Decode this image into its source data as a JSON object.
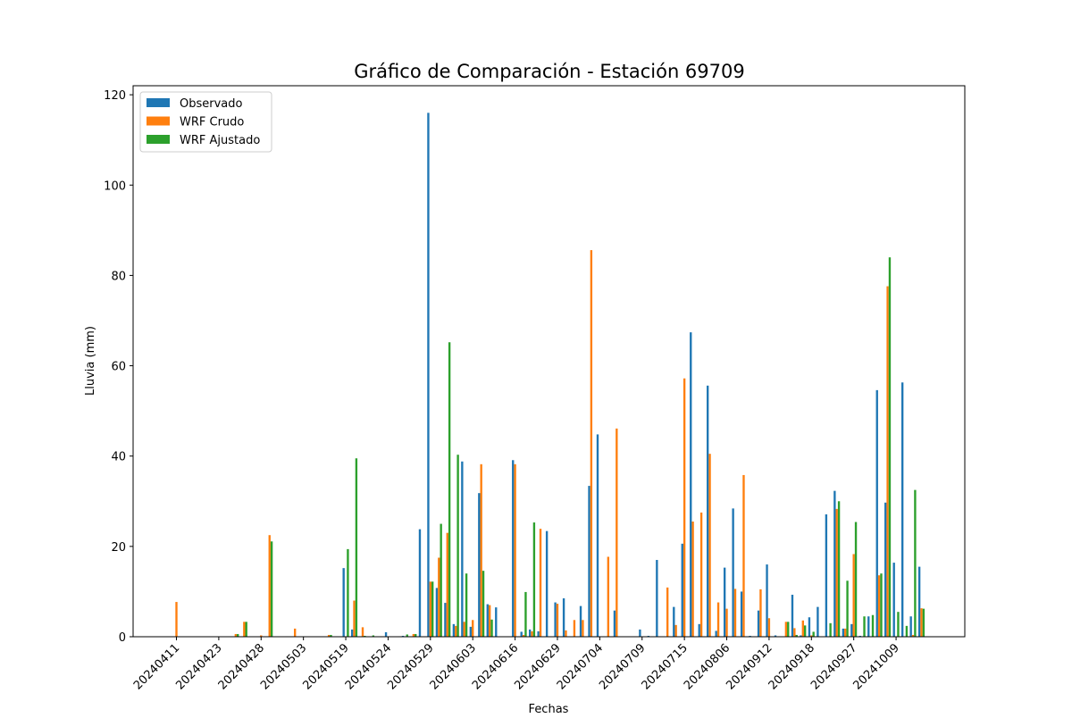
{
  "chart_data": {
    "type": "bar",
    "title": "Gráfico de Comparación - Estación 69709",
    "xlabel": "Fechas",
    "ylabel": "Lluvia (mm)",
    "ylim": [
      0,
      122
    ],
    "yticks": [
      0,
      20,
      40,
      60,
      80,
      100,
      120
    ],
    "grid": false,
    "legend_position": "top-left",
    "tick_labels": [
      "20240411",
      "20240423",
      "20240428",
      "20240503",
      "20240519",
      "20240524",
      "20240529",
      "20240603",
      "20240616",
      "20240629",
      "20240704",
      "20240709",
      "20240715",
      "20240806",
      "20240912",
      "20240918",
      "20240927",
      "20241009"
    ],
    "series": [
      {
        "name": "Observado",
        "color": "#1f77b4",
        "values": [
          0,
          0,
          0,
          0,
          0,
          0,
          0,
          0,
          0,
          0,
          0,
          0,
          0,
          0,
          0,
          0,
          0,
          0,
          0,
          0,
          15.2,
          1.6,
          0,
          0,
          0,
          1.0,
          0,
          0.2,
          0,
          23.8,
          116,
          10.8,
          7.5,
          2.8,
          38.8,
          2.2,
          31.8,
          7.2,
          6.5,
          0,
          39.1,
          1.1,
          1.6,
          1.2,
          23.4,
          7.6,
          8.5,
          0,
          6.8,
          33.4,
          44.8,
          0,
          5.8,
          0,
          0,
          1.6,
          0.2,
          17.0,
          0,
          6.6,
          20.6,
          67.4,
          2.8,
          55.6,
          1.3,
          15.3,
          28.4,
          10.0,
          0.2,
          5.8,
          16.0,
          0.3,
          0,
          9.3,
          0.3,
          4.3,
          6.6,
          27.1,
          32.3,
          1.8,
          2.8,
          0.2,
          4.5,
          54.6,
          29.7,
          16.4,
          56.3,
          4.5,
          15.5
        ],
        "_note": ""
      },
      {
        "name": "WRF Crudo",
        "color": "#ff7f0e",
        "values": [
          7.7,
          0,
          0,
          0,
          0,
          0,
          0,
          0.6,
          3.3,
          0,
          0.3,
          22.5,
          0,
          0.1,
          1.8,
          0,
          0,
          0,
          0.4,
          0,
          0,
          8.0,
          2.1,
          0,
          0,
          0,
          0,
          0,
          0.6,
          0,
          12.2,
          17.5,
          23.0,
          2.4,
          3.3,
          3.7,
          38.2,
          7.0,
          0,
          0,
          38.2,
          0.4,
          1.2,
          23.9,
          0,
          7.3,
          1.4,
          3.7,
          3.7,
          85.6,
          0,
          17.7,
          46.1,
          0,
          0,
          0,
          0,
          0,
          10.9,
          2.6,
          57.2,
          25.5,
          27.5,
          40.5,
          7.6,
          6.2,
          10.6,
          35.8,
          0,
          10.5,
          4.1,
          0,
          3.3,
          1.9,
          3.6,
          0.3,
          0,
          0,
          28.3,
          1.8,
          18.3,
          0,
          0,
          13.6,
          77.6,
          0,
          0,
          0.4,
          6.3
        ],
        "_note": ""
      },
      {
        "name": "WRF Ajustado",
        "color": "#2ca02c",
        "values": [
          0,
          0,
          0,
          0,
          0,
          0,
          0,
          0.6,
          3.3,
          0,
          0,
          21.1,
          0,
          0,
          0,
          0,
          0,
          0,
          0.4,
          0,
          19.4,
          39.5,
          0.2,
          0.3,
          0,
          0.1,
          0.1,
          0.5,
          0.6,
          0,
          12.2,
          25.0,
          65.2,
          40.3,
          14.0,
          0,
          14.6,
          3.8,
          0,
          0,
          0,
          9.9,
          25.3,
          0,
          0,
          0,
          0,
          0,
          0,
          0,
          0,
          0,
          0,
          0,
          0,
          0,
          0,
          0,
          0,
          0,
          0,
          0,
          0,
          0,
          0,
          0,
          0,
          0,
          0,
          0,
          0,
          0,
          3.3,
          0.4,
          2.5,
          1.1,
          0,
          3.0,
          30.0,
          12.4,
          25.4,
          4.5,
          4.8,
          14.0,
          84.0,
          5.5,
          2.4,
          32.5,
          6.2
        ]
      }
    ]
  }
}
